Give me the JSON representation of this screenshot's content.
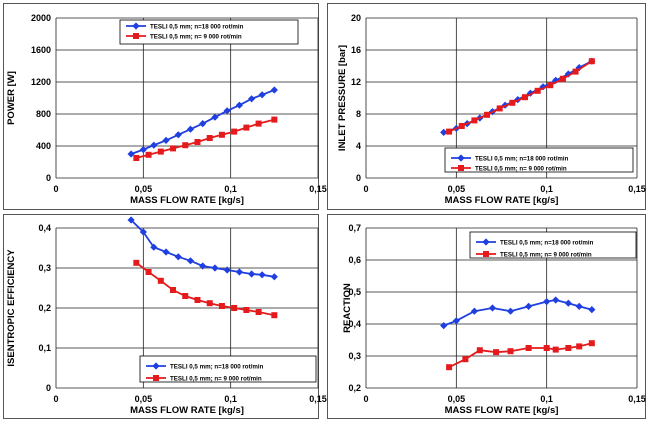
{
  "chart_data": [
    {
      "type": "line",
      "xlabel": "MASS FLOW RATE [kg/s]",
      "ylabel": "POWER [W]",
      "xlim": [
        0,
        0.15
      ],
      "ylim": [
        0,
        2000
      ],
      "xticks": [
        0,
        0.05,
        0.1,
        0.15
      ],
      "xtick_labels": [
        "0",
        "0,05",
        "0,1",
        "0,15"
      ],
      "yticks": [
        0,
        400,
        800,
        1200,
        1600,
        2000
      ],
      "ytick_labels": [
        "0",
        "400",
        "800",
        "1200",
        "1600",
        "2000"
      ],
      "grid": true,
      "legend_position": "top-center",
      "series": [
        {
          "name": "TESLI 0,5 mm; n=18 000 rot/min",
          "color": "#1f3fe0",
          "marker": "diamond",
          "x": [
            0.043,
            0.05,
            0.056,
            0.063,
            0.07,
            0.077,
            0.084,
            0.091,
            0.098,
            0.105,
            0.112,
            0.118,
            0.125
          ],
          "y": [
            300,
            355,
            410,
            470,
            540,
            610,
            680,
            760,
            840,
            910,
            990,
            1040,
            1100
          ]
        },
        {
          "name": "TESLI 0,5 mm; n= 9 000 rot/min",
          "color": "#e41a1c",
          "marker": "square",
          "x": [
            0.046,
            0.053,
            0.06,
            0.067,
            0.074,
            0.081,
            0.088,
            0.095,
            0.102,
            0.109,
            0.116,
            0.125
          ],
          "y": [
            250,
            290,
            330,
            370,
            410,
            450,
            500,
            540,
            580,
            630,
            680,
            730
          ]
        }
      ]
    },
    {
      "type": "line",
      "xlabel": "MASS FLOW RATE [kg/s]",
      "ylabel": "INLET PRESSURE [bar]",
      "xlim": [
        0,
        0.15
      ],
      "ylim": [
        0,
        20
      ],
      "xticks": [
        0,
        0.05,
        0.1,
        0.15
      ],
      "xtick_labels": [
        "0",
        "0,05",
        "0,1",
        "0,15"
      ],
      "yticks": [
        0,
        4,
        8,
        12,
        16,
        20
      ],
      "ytick_labels": [
        "0",
        "4",
        "8",
        "12",
        "16",
        "20"
      ],
      "grid": true,
      "legend_position": "bottom-right",
      "series": [
        {
          "name": "TESLI 0,5 mm; n=18 000 rot/min",
          "color": "#1f3fe0",
          "marker": "diamond",
          "x": [
            0.043,
            0.05,
            0.056,
            0.063,
            0.07,
            0.077,
            0.084,
            0.091,
            0.098,
            0.105,
            0.112,
            0.118,
            0.125
          ],
          "y": [
            5.7,
            6.2,
            6.8,
            7.5,
            8.3,
            9.1,
            9.8,
            10.6,
            11.4,
            12.2,
            13.0,
            13.8,
            14.6
          ]
        },
        {
          "name": "TESLI 0,5 mm; n= 9 000 rot/min",
          "color": "#e41a1c",
          "marker": "square",
          "x": [
            0.046,
            0.053,
            0.06,
            0.067,
            0.074,
            0.081,
            0.088,
            0.095,
            0.102,
            0.109,
            0.116,
            0.125
          ],
          "y": [
            5.8,
            6.5,
            7.2,
            7.9,
            8.7,
            9.4,
            10.1,
            10.9,
            11.6,
            12.4,
            13.3,
            14.6
          ]
        }
      ]
    },
    {
      "type": "line",
      "xlabel": "MASS FLOW RATE [kg/s]",
      "ylabel": "ISENTROPIC EFFICIENCY",
      "xlim": [
        0,
        0.15
      ],
      "ylim": [
        0,
        0.4
      ],
      "xticks": [
        0,
        0.05,
        0.1,
        0.15
      ],
      "xtick_labels": [
        "0",
        "0,05",
        "0,1",
        "0,15"
      ],
      "yticks": [
        0,
        0.1,
        0.2,
        0.3,
        0.4
      ],
      "ytick_labels": [
        "0",
        "0,1",
        "0,2",
        "0,3",
        "0,4"
      ],
      "grid": true,
      "legend_position": "bottom-right",
      "series": [
        {
          "name": "TESLI 0,5 mm; n=18 000 rot/min",
          "color": "#1f3fe0",
          "marker": "diamond",
          "x": [
            0.043,
            0.05,
            0.056,
            0.063,
            0.07,
            0.077,
            0.084,
            0.091,
            0.098,
            0.105,
            0.112,
            0.118,
            0.125
          ],
          "y": [
            0.42,
            0.39,
            0.352,
            0.34,
            0.328,
            0.318,
            0.305,
            0.3,
            0.295,
            0.29,
            0.285,
            0.283,
            0.278
          ]
        },
        {
          "name": "TESLI 0,5 mm; n= 9 000 rot/min",
          "color": "#e41a1c",
          "marker": "square",
          "x": [
            0.046,
            0.053,
            0.06,
            0.067,
            0.074,
            0.081,
            0.088,
            0.095,
            0.102,
            0.109,
            0.116,
            0.125
          ],
          "y": [
            0.313,
            0.29,
            0.268,
            0.245,
            0.23,
            0.22,
            0.212,
            0.205,
            0.2,
            0.195,
            0.19,
            0.182
          ]
        }
      ]
    },
    {
      "type": "line",
      "xlabel": "MASS FLOW RATE [kg/s]",
      "ylabel": "REACTION",
      "xlim": [
        0,
        0.15
      ],
      "ylim": [
        0.2,
        0.7
      ],
      "xticks": [
        0,
        0.05,
        0.1,
        0.15
      ],
      "xtick_labels": [
        "0",
        "0,05",
        "0,1",
        "0,15"
      ],
      "yticks": [
        0.2,
        0.3,
        0.4,
        0.5,
        0.6,
        0.7
      ],
      "ytick_labels": [
        "0,2",
        "0,3",
        "0,4",
        "0,5",
        "0,6",
        "0,7"
      ],
      "grid": true,
      "legend_position": "top-center",
      "series": [
        {
          "name": "TESLI 0,5 mm; n=18 000 rot/min",
          "color": "#1f3fe0",
          "marker": "diamond",
          "x": [
            0.043,
            0.05,
            0.06,
            0.07,
            0.08,
            0.09,
            0.1,
            0.105,
            0.112,
            0.118,
            0.125
          ],
          "y": [
            0.395,
            0.41,
            0.44,
            0.45,
            0.44,
            0.455,
            0.47,
            0.475,
            0.465,
            0.455,
            0.445
          ]
        },
        {
          "name": "TESLI 0,5 mm; n= 9 000 rot/min",
          "color": "#e41a1c",
          "marker": "square",
          "x": [
            0.046,
            0.055,
            0.063,
            0.072,
            0.08,
            0.09,
            0.1,
            0.105,
            0.112,
            0.118,
            0.125
          ],
          "y": [
            0.265,
            0.29,
            0.318,
            0.312,
            0.315,
            0.325,
            0.325,
            0.32,
            0.325,
            0.33,
            0.34
          ]
        }
      ]
    }
  ]
}
